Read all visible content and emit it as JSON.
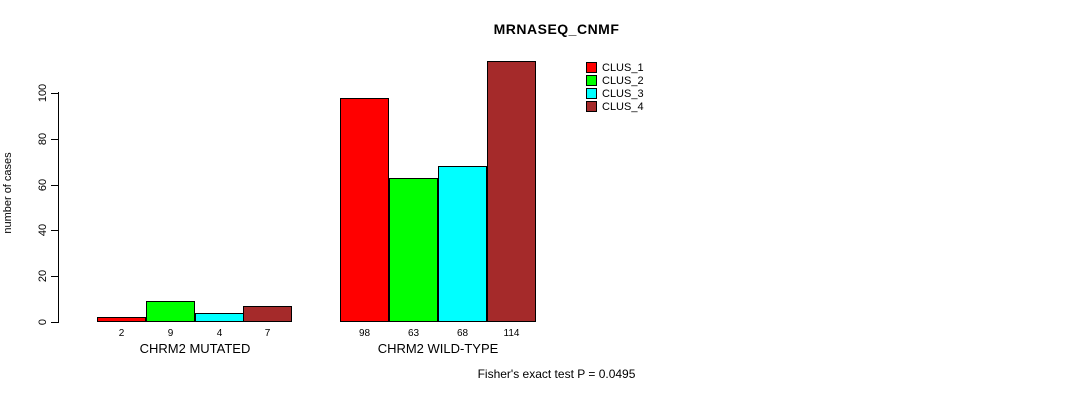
{
  "title": "MRNASEQ_CNMF",
  "ylabel": "number of cases",
  "footer": "Fisher's exact test P = 0.0495",
  "chart_data": {
    "type": "bar",
    "title": "MRNASEQ_CNMF",
    "xlabel": "",
    "ylabel": "number of cases",
    "categories": [
      "CHRM2 MUTATED",
      "CHRM2 WILD-TYPE"
    ],
    "series": [
      {
        "name": "CLUS_1",
        "color": "#FF0000",
        "values": [
          2,
          98
        ]
      },
      {
        "name": "CLUS_2",
        "color": "#00FF00",
        "values": [
          9,
          63
        ]
      },
      {
        "name": "CLUS_3",
        "color": "#00FFFF",
        "values": [
          4,
          68
        ]
      },
      {
        "name": "CLUS_4",
        "color": "#A52A2A",
        "values": [
          7,
          114
        ]
      }
    ],
    "bar_labels": [
      [
        "2",
        "9",
        "4",
        "7"
      ],
      [
        "98",
        "63",
        "68",
        "114"
      ]
    ],
    "yticks": [
      0,
      20,
      40,
      60,
      80,
      100
    ],
    "ylim": [
      0,
      114
    ],
    "grid": false,
    "legend_position": "top-right-inside",
    "annotation": "Fisher's exact test P = 0.0495"
  }
}
